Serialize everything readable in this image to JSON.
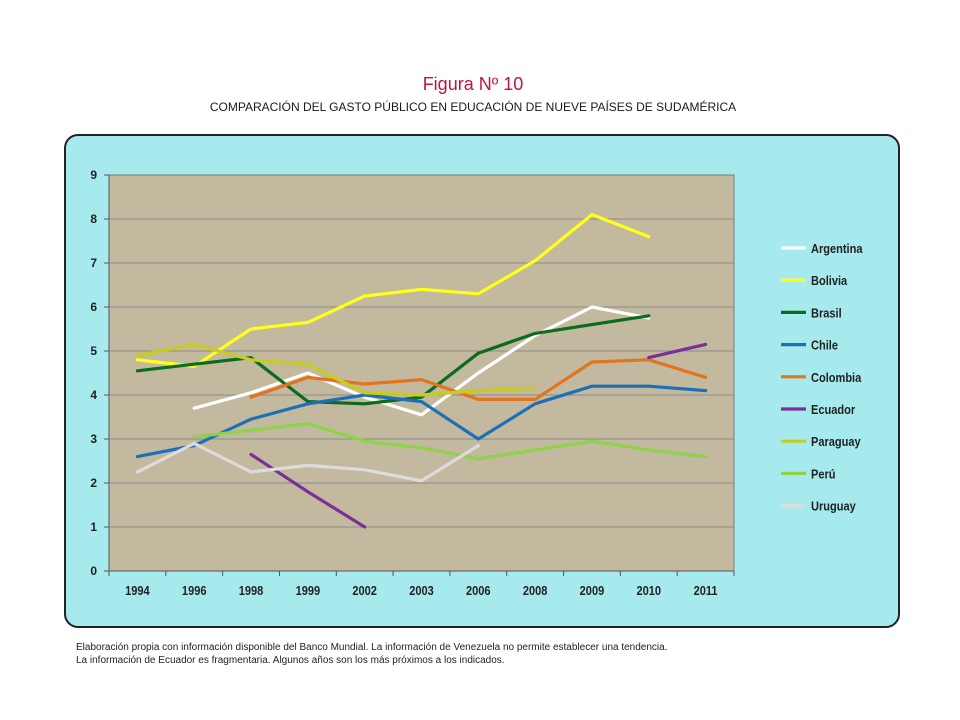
{
  "header": {
    "title": "Figura Nº 10",
    "subtitle": "COMPARACIÓN DEL GASTO PÚBLICO EN EDUCACIÓN DE NUEVE PAÍSES DE SUDAMÉRICA"
  },
  "notes": {
    "line1": "Elaboración propia con información disponible del Banco Mundial. La información de Venezuela no permite establecer una tendencia.",
    "line2": "La información de Ecuador es fragmentaria. Algunos años son los más próximos a los indicados."
  },
  "colors": {
    "panel_background": "#a6eaed",
    "plot_background": "#c3b99e",
    "gridline": "#8c8c8c",
    "title": "#c0143c"
  },
  "chart_data": {
    "type": "line",
    "title": "",
    "xlabel": "",
    "ylabel": "",
    "ylim": [
      0,
      9
    ],
    "yticks": [
      0,
      1,
      2,
      3,
      4,
      5,
      6,
      7,
      8,
      9
    ],
    "categories": [
      "1994",
      "1996",
      "1998",
      "1999",
      "2002",
      "2003",
      "2006",
      "2008",
      "2009",
      "2010",
      "2011"
    ],
    "grid": true,
    "legend_position": "right",
    "series": [
      {
        "name": "Argentina",
        "color": "#ffffff",
        "values": [
          null,
          3.7,
          4.05,
          4.5,
          3.95,
          3.55,
          4.5,
          5.35,
          6.0,
          5.75,
          null
        ]
      },
      {
        "name": "Bolivia",
        "color": "#ffff1a",
        "values": [
          4.8,
          4.65,
          5.5,
          5.65,
          6.25,
          6.4,
          6.3,
          7.05,
          8.1,
          7.6,
          null
        ]
      },
      {
        "name": "Brasil",
        "color": "#0b6b1e",
        "values": [
          4.55,
          4.7,
          4.85,
          3.85,
          3.8,
          3.95,
          4.95,
          5.4,
          5.6,
          5.8,
          null
        ]
      },
      {
        "name": "Chile",
        "color": "#1f6fb8",
        "values": [
          2.6,
          2.85,
          3.45,
          3.8,
          4.0,
          3.85,
          3.0,
          3.8,
          4.2,
          4.2,
          4.1
        ]
      },
      {
        "name": "Colombia",
        "color": "#e4731e",
        "values": [
          null,
          null,
          3.95,
          4.4,
          4.25,
          4.35,
          3.9,
          3.9,
          4.75,
          4.8,
          4.4
        ]
      },
      {
        "name": "Ecuador",
        "color": "#7a2f99",
        "values": [
          null,
          null,
          2.65,
          1.8,
          1.0,
          null,
          null,
          null,
          null,
          4.85,
          5.15
        ]
      },
      {
        "name": "Paraguay",
        "color": "#c8cc1e",
        "values": [
          4.9,
          5.15,
          4.8,
          4.7,
          4.05,
          4.0,
          4.1,
          4.15,
          null,
          null,
          null
        ]
      },
      {
        "name": "Perú",
        "color": "#8ed24a",
        "values": [
          null,
          3.05,
          3.2,
          3.35,
          2.95,
          2.8,
          2.55,
          2.75,
          2.95,
          2.75,
          2.6
        ]
      },
      {
        "name": "Uruguay",
        "color": "#dcdcdc",
        "values": [
          2.25,
          2.9,
          2.25,
          2.4,
          2.3,
          2.05,
          2.85,
          null,
          null,
          null,
          null
        ]
      }
    ]
  }
}
